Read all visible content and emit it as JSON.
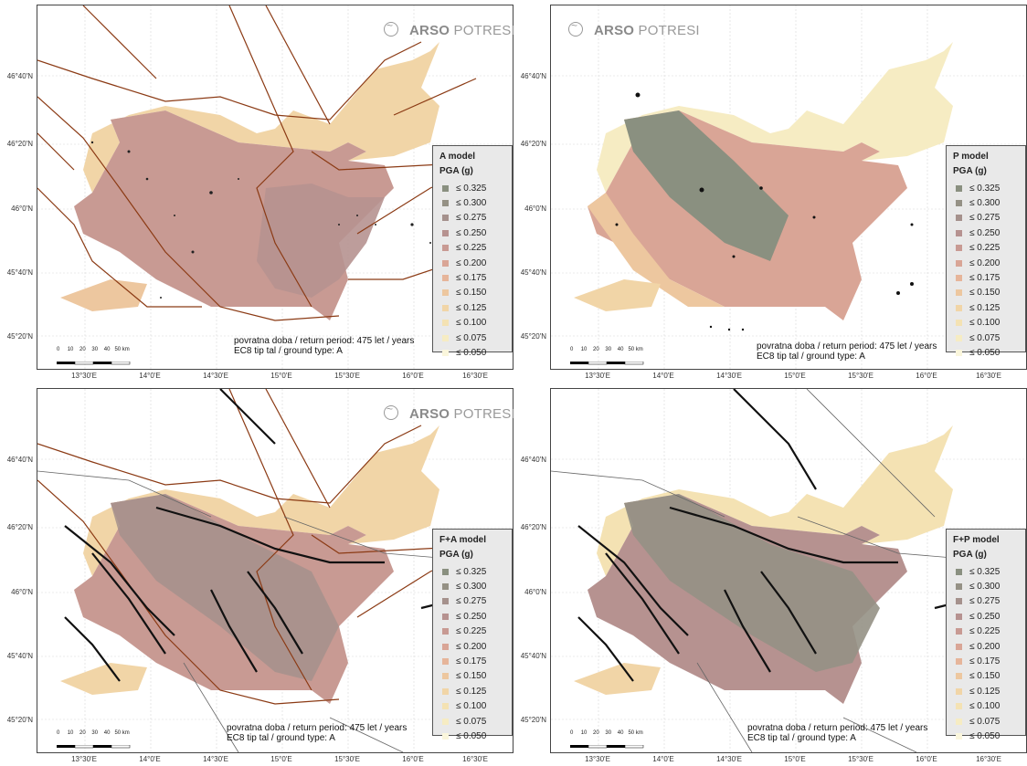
{
  "brand": {
    "bold": "ARSO",
    "light": "POTRESI"
  },
  "lat_labels": [
    "46°40'N",
    "46°20'N",
    "46°0'N",
    "45°40'N",
    "45°20'N"
  ],
  "lon_labels": [
    "13°30'E",
    "14°0'E",
    "14°30'E",
    "15°0'E",
    "15°30'E",
    "16°0'E",
    "16°30'E"
  ],
  "scale_labels": [
    "0",
    "10",
    "20",
    "30",
    "40",
    "50 km"
  ],
  "note": {
    "line1": "povratna doba / return period:  475 let / years",
    "line2": "EC8 tip tal / ground type:  A"
  },
  "legend_unit": "PGA (g)",
  "legend_values": [
    "≤ 0.325",
    "≤ 0.300",
    "≤ 0.275",
    "≤ 0.250",
    "≤ 0.225",
    "≤ 0.200",
    "≤ 0.175",
    "≤ 0.150",
    "≤ 0.125",
    "≤ 0.100",
    "≤ 0.075",
    "≤ 0.050"
  ],
  "legend_colors": [
    "#8a9080",
    "#959185",
    "#a5918c",
    "#b69290",
    "#c89a93",
    "#d9a596",
    "#e6b59a",
    "#edc79f",
    "#f1d5a7",
    "#f4e2b3",
    "#f6ecc3",
    "#faf6dc"
  ],
  "panels": [
    {
      "title": "A model",
      "has_brand": true,
      "show_lon": true
    },
    {
      "title": "P model",
      "has_brand": true,
      "show_lon": true
    },
    {
      "title": "F+A model",
      "has_brand": true,
      "show_lon": true
    },
    {
      "title": "F+P model",
      "has_brand": false,
      "show_lon": true
    }
  ]
}
